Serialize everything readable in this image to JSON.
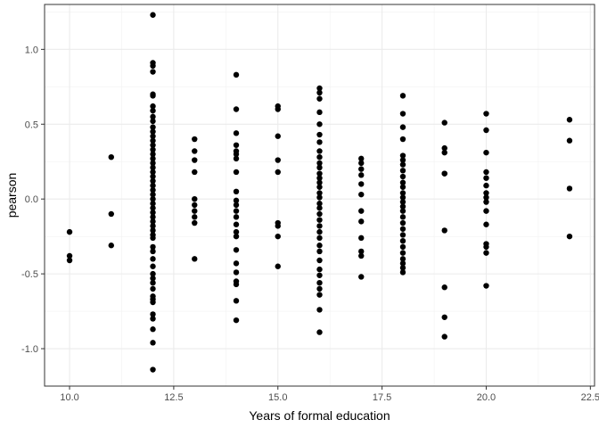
{
  "chart_data": {
    "type": "scatter",
    "title": "",
    "xlabel": "Years of formal education",
    "ylabel": "pearson",
    "xlim": [
      9.4,
      22.6
    ],
    "ylim": [
      -1.25,
      1.3
    ],
    "x_ticks": [
      10.0,
      12.5,
      15.0,
      17.5,
      20.0,
      22.5
    ],
    "x_tick_labels": [
      "10.0",
      "12.5",
      "15.0",
      "17.5",
      "20.0",
      "22.5"
    ],
    "y_ticks": [
      -1.0,
      -0.5,
      0.0,
      0.5,
      1.0
    ],
    "y_tick_labels": [
      "-1.0",
      "-0.5",
      "0.0",
      "0.5",
      "1.0"
    ],
    "grid": true,
    "legend": "none",
    "point_color": "#000000",
    "points": [
      [
        10,
        -0.22
      ],
      [
        10,
        -0.38
      ],
      [
        10,
        -0.41
      ],
      [
        11,
        0.28
      ],
      [
        11,
        -0.1
      ],
      [
        11,
        -0.31
      ],
      [
        12,
        1.23
      ],
      [
        12,
        0.91
      ],
      [
        12,
        0.89
      ],
      [
        12,
        0.85
      ],
      [
        12,
        0.7
      ],
      [
        12,
        0.69
      ],
      [
        12,
        0.62
      ],
      [
        12,
        0.59
      ],
      [
        12,
        0.55
      ],
      [
        12,
        0.52
      ],
      [
        12,
        0.48
      ],
      [
        12,
        0.45
      ],
      [
        12,
        0.42
      ],
      [
        12,
        0.39
      ],
      [
        12,
        0.36
      ],
      [
        12,
        0.33
      ],
      [
        12,
        0.3
      ],
      [
        12,
        0.27
      ],
      [
        12,
        0.24
      ],
      [
        12,
        0.21
      ],
      [
        12,
        0.18
      ],
      [
        12,
        0.15
      ],
      [
        12,
        0.12
      ],
      [
        12,
        0.09
      ],
      [
        12,
        0.06
      ],
      [
        12,
        0.03
      ],
      [
        12,
        0.0
      ],
      [
        12,
        -0.03
      ],
      [
        12,
        -0.06
      ],
      [
        12,
        -0.09
      ],
      [
        12,
        -0.12
      ],
      [
        12,
        -0.15
      ],
      [
        12,
        -0.18
      ],
      [
        12,
        -0.21
      ],
      [
        12,
        -0.24
      ],
      [
        12,
        -0.26
      ],
      [
        12,
        -0.32
      ],
      [
        12,
        -0.35
      ],
      [
        12,
        -0.4
      ],
      [
        12,
        -0.45
      ],
      [
        12,
        -0.5
      ],
      [
        12,
        -0.53
      ],
      [
        12,
        -0.56
      ],
      [
        12,
        -0.6
      ],
      [
        12,
        -0.65
      ],
      [
        12,
        -0.67
      ],
      [
        12,
        -0.69
      ],
      [
        12,
        -0.77
      ],
      [
        12,
        -0.8
      ],
      [
        12,
        -0.87
      ],
      [
        12,
        -0.96
      ],
      [
        12,
        -1.14
      ],
      [
        13,
        0.4
      ],
      [
        13,
        0.32
      ],
      [
        13,
        0.26
      ],
      [
        13,
        0.18
      ],
      [
        13,
        0.0
      ],
      [
        13,
        -0.04
      ],
      [
        13,
        -0.08
      ],
      [
        13,
        -0.12
      ],
      [
        13,
        -0.16
      ],
      [
        13,
        -0.4
      ],
      [
        14,
        0.83
      ],
      [
        14,
        0.6
      ],
      [
        14,
        0.44
      ],
      [
        14,
        0.36
      ],
      [
        14,
        0.32
      ],
      [
        14,
        0.3
      ],
      [
        14,
        0.27
      ],
      [
        14,
        0.18
      ],
      [
        14,
        0.05
      ],
      [
        14,
        -0.01
      ],
      [
        14,
        -0.04
      ],
      [
        14,
        -0.08
      ],
      [
        14,
        -0.12
      ],
      [
        14,
        -0.17
      ],
      [
        14,
        -0.22
      ],
      [
        14,
        -0.25
      ],
      [
        14,
        -0.34
      ],
      [
        14,
        -0.43
      ],
      [
        14,
        -0.49
      ],
      [
        14,
        -0.55
      ],
      [
        14,
        -0.57
      ],
      [
        14,
        -0.68
      ],
      [
        14,
        -0.81
      ],
      [
        15,
        0.62
      ],
      [
        15,
        0.6
      ],
      [
        15,
        0.42
      ],
      [
        15,
        0.26
      ],
      [
        15,
        0.18
      ],
      [
        15,
        -0.16
      ],
      [
        15,
        -0.18
      ],
      [
        15,
        -0.25
      ],
      [
        15,
        -0.45
      ],
      [
        16,
        0.74
      ],
      [
        16,
        0.71
      ],
      [
        16,
        0.67
      ],
      [
        16,
        0.58
      ],
      [
        16,
        0.5
      ],
      [
        16,
        0.43
      ],
      [
        16,
        0.38
      ],
      [
        16,
        0.32
      ],
      [
        16,
        0.28
      ],
      [
        16,
        0.24
      ],
      [
        16,
        0.21
      ],
      [
        16,
        0.17
      ],
      [
        16,
        0.14
      ],
      [
        16,
        0.11
      ],
      [
        16,
        0.08
      ],
      [
        16,
        0.04
      ],
      [
        16,
        0.01
      ],
      [
        16,
        -0.03
      ],
      [
        16,
        -0.06
      ],
      [
        16,
        -0.1
      ],
      [
        16,
        -0.14
      ],
      [
        16,
        -0.18
      ],
      [
        16,
        -0.22
      ],
      [
        16,
        -0.26
      ],
      [
        16,
        -0.31
      ],
      [
        16,
        -0.35
      ],
      [
        16,
        -0.41
      ],
      [
        16,
        -0.47
      ],
      [
        16,
        -0.51
      ],
      [
        16,
        -0.56
      ],
      [
        16,
        -0.6
      ],
      [
        16,
        -0.64
      ],
      [
        16,
        -0.74
      ],
      [
        16,
        -0.89
      ],
      [
        17,
        0.27
      ],
      [
        17,
        0.24
      ],
      [
        17,
        0.2
      ],
      [
        17,
        0.16
      ],
      [
        17,
        0.1
      ],
      [
        17,
        0.03
      ],
      [
        17,
        -0.08
      ],
      [
        17,
        -0.15
      ],
      [
        17,
        -0.26
      ],
      [
        17,
        -0.35
      ],
      [
        17,
        -0.38
      ],
      [
        17,
        -0.52
      ],
      [
        18,
        0.69
      ],
      [
        18,
        0.57
      ],
      [
        18,
        0.48
      ],
      [
        18,
        0.4
      ],
      [
        18,
        0.29
      ],
      [
        18,
        0.26
      ],
      [
        18,
        0.23
      ],
      [
        18,
        0.19
      ],
      [
        18,
        0.15
      ],
      [
        18,
        0.11
      ],
      [
        18,
        0.08
      ],
      [
        18,
        0.04
      ],
      [
        18,
        0.01
      ],
      [
        18,
        -0.02
      ],
      [
        18,
        -0.05
      ],
      [
        18,
        -0.08
      ],
      [
        18,
        -0.12
      ],
      [
        18,
        -0.16
      ],
      [
        18,
        -0.2
      ],
      [
        18,
        -0.24
      ],
      [
        18,
        -0.28
      ],
      [
        18,
        -0.32
      ],
      [
        18,
        -0.36
      ],
      [
        18,
        -0.4
      ],
      [
        18,
        -0.43
      ],
      [
        18,
        -0.46
      ],
      [
        18,
        -0.49
      ],
      [
        19,
        0.51
      ],
      [
        19,
        0.34
      ],
      [
        19,
        0.31
      ],
      [
        19,
        0.17
      ],
      [
        19,
        0.17
      ],
      [
        19,
        -0.21
      ],
      [
        19,
        -0.59
      ],
      [
        19,
        -0.79
      ],
      [
        19,
        -0.92
      ],
      [
        20,
        0.57
      ],
      [
        20,
        0.46
      ],
      [
        20,
        0.31
      ],
      [
        20,
        0.18
      ],
      [
        20,
        0.14
      ],
      [
        20,
        0.09
      ],
      [
        20,
        0.04
      ],
      [
        20,
        0.01
      ],
      [
        20,
        -0.02
      ],
      [
        20,
        -0.08
      ],
      [
        20,
        -0.17
      ],
      [
        20,
        -0.3
      ],
      [
        20,
        -0.32
      ],
      [
        20,
        -0.36
      ],
      [
        20,
        -0.58
      ],
      [
        22,
        0.53
      ],
      [
        22,
        0.39
      ],
      [
        22,
        0.07
      ],
      [
        22,
        -0.25
      ]
    ]
  }
}
